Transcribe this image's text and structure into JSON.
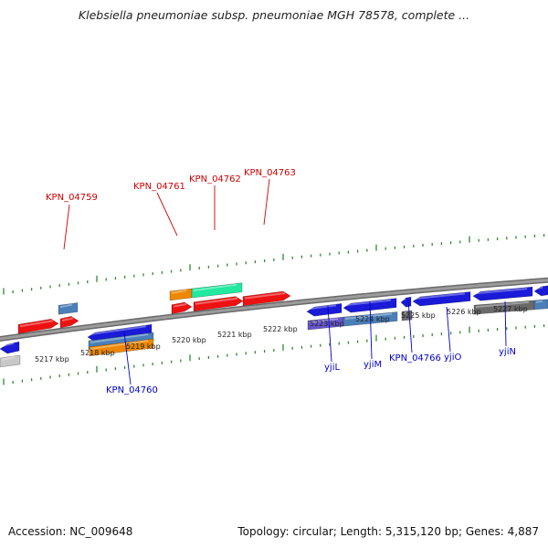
{
  "title": "Klebsiella pneumoniae subsp. pneumoniae MGH 78578, complete ...",
  "footer": {
    "accession": "Accession: NC_009648",
    "summary": "Topology: circular; Length: 5,315,120 bp; Genes: 4,887"
  },
  "colors": {
    "forward_label": "#cc0000",
    "reverse_label": "#0000cc",
    "backbone": "#8a8a8a",
    "tick": "#2e8b2e",
    "red": "#ee1111",
    "blue": "#1a1ad8",
    "steel": "#4a7fb8",
    "orange": "#ee8800",
    "mint": "#22e8a0",
    "slate": "#6655cc",
    "gray": "#6a6a6a",
    "light_gray": "#c8c8c8"
  },
  "scale": {
    "unit": "kbp",
    "tick_labels": [
      "5217 kbp",
      "5218 kbp",
      "5219 kbp",
      "5220 kbp",
      "5221 kbp",
      "5222 kbp",
      "5223 kbp",
      "5224 kbp",
      "5225 kbp",
      "5226 kbp",
      "5227 kbp"
    ]
  },
  "gene_labels": {
    "forward": [
      "KPN_04759",
      "KPN_04761",
      "KPN_04762",
      "KPN_04763"
    ],
    "reverse": [
      "KPN_04760",
      "yjiL",
      "yjiM",
      "KPN_04766",
      "yjiO",
      "yjiN"
    ]
  },
  "features": [
    {
      "name": "red-feature-1",
      "color": "red",
      "strand": "forward"
    },
    {
      "name": "red-feature-2",
      "color": "red",
      "strand": "forward"
    },
    {
      "name": "steel-feature-1",
      "color": "steel",
      "strand": "forward"
    },
    {
      "name": "red-feature-3",
      "color": "red",
      "strand": "forward"
    },
    {
      "name": "red-feature-4",
      "color": "red",
      "strand": "forward"
    },
    {
      "name": "red-feature-5",
      "color": "red",
      "strand": "forward"
    },
    {
      "name": "orange-feature-1",
      "color": "orange",
      "strand": "forward"
    },
    {
      "name": "mint-feature-1",
      "color": "mint",
      "strand": "forward"
    },
    {
      "name": "blue-feature-1",
      "color": "blue",
      "strand": "reverse"
    },
    {
      "name": "blue-feature-2",
      "color": "blue",
      "strand": "reverse"
    },
    {
      "name": "steel-feature-2",
      "color": "steel",
      "strand": "reverse"
    },
    {
      "name": "orange-feature-2",
      "color": "orange",
      "strand": "reverse"
    },
    {
      "name": "blue-feature-3",
      "color": "blue",
      "strand": "reverse"
    },
    {
      "name": "blue-feature-4",
      "color": "blue",
      "strand": "reverse"
    },
    {
      "name": "blue-feature-5",
      "color": "blue",
      "strand": "reverse"
    },
    {
      "name": "blue-feature-6",
      "color": "blue",
      "strand": "reverse"
    },
    {
      "name": "blue-feature-7",
      "color": "blue",
      "strand": "reverse"
    },
    {
      "name": "blue-feature-8",
      "color": "blue",
      "strand": "reverse"
    },
    {
      "name": "slate-feature-1",
      "color": "slate",
      "strand": "reverse"
    },
    {
      "name": "steel-feature-3",
      "color": "steel",
      "strand": "reverse"
    },
    {
      "name": "gray-feature-1",
      "color": "gray",
      "strand": "reverse"
    },
    {
      "name": "gray-feature-2",
      "color": "gray",
      "strand": "reverse"
    },
    {
      "name": "steel-feature-4",
      "color": "steel",
      "strand": "reverse"
    },
    {
      "name": "light-gray-feature-1",
      "color": "light_gray",
      "strand": "reverse"
    }
  ]
}
